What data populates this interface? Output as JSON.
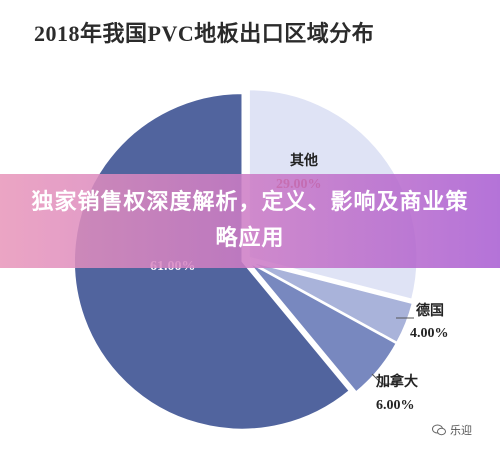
{
  "chart_data": {
    "type": "pie",
    "title": "2018年我国PVC地板出口区域分布",
    "slices": [
      {
        "label": "其他",
        "value": 29.0,
        "value_label": "29.00%",
        "color": "#dfe3f5"
      },
      {
        "label": "德国",
        "value": 4.0,
        "value_label": "4.00%",
        "color": "#a9b3da"
      },
      {
        "label": "加拿大",
        "value": 6.0,
        "value_label": "6.00%",
        "color": "#7888bf"
      },
      {
        "label": "",
        "value": 61.0,
        "value_label": "61.00%",
        "color": "#51649e"
      }
    ],
    "legend": "none"
  },
  "banner": {
    "text": "独家销售权深度解析，定义、影响及商业策略应用"
  },
  "watermark": {
    "text": "乐迎",
    "icon": "wechat-icon"
  }
}
